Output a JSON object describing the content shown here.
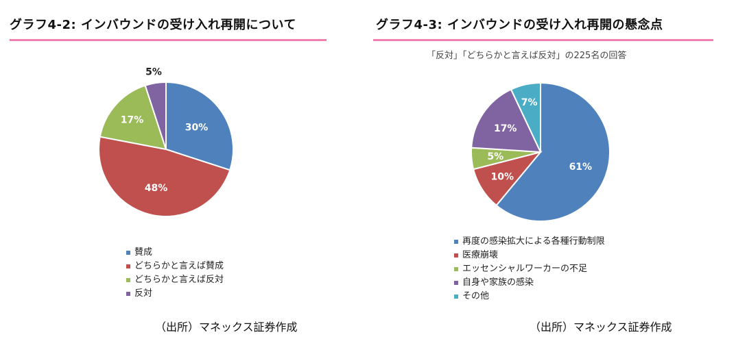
{
  "left": {
    "title": "グラフ4-2: インバウンドの受け入れ再開について",
    "source": "（出所）マネックス証券作成"
  },
  "right": {
    "title": "グラフ4-3: インバウンドの受け入れ再開の懸念点",
    "subtitle": "「反対」「どちらかと言えば反対」の225名の回答",
    "source": "（出所）マネックス証券作成"
  },
  "chart_data": [
    {
      "type": "pie",
      "title": "グラフ4-2: インバウンドの受け入れ再開について",
      "categories": [
        "賛成",
        "どちらかと言えば賛成",
        "どちらかと言えば反対",
        "反対"
      ],
      "values": [
        30,
        48,
        17,
        5
      ],
      "labels": [
        "30%",
        "48%",
        "17%",
        "5%"
      ],
      "colors": [
        "#4f81bd",
        "#c0504d",
        "#9bbb59",
        "#8064a2"
      ],
      "legend_position": "bottom"
    },
    {
      "type": "pie",
      "title": "グラフ4-3: インバウンドの受け入れ再開の懸念点",
      "subtitle": "「反対」「どちらかと言えば反対」の225名の回答",
      "categories": [
        "再度の感染拡大による各種行動制限",
        "医療崩壊",
        "エッセンシャルワーカーの不足",
        "自身や家族の感染",
        "その他"
      ],
      "values": [
        61,
        10,
        5,
        17,
        7
      ],
      "labels": [
        "61%",
        "10%",
        "5%",
        "17%",
        "7%"
      ],
      "colors": [
        "#4f81bd",
        "#c0504d",
        "#9bbb59",
        "#8064a2",
        "#4bacc6"
      ],
      "legend_position": "bottom"
    }
  ]
}
